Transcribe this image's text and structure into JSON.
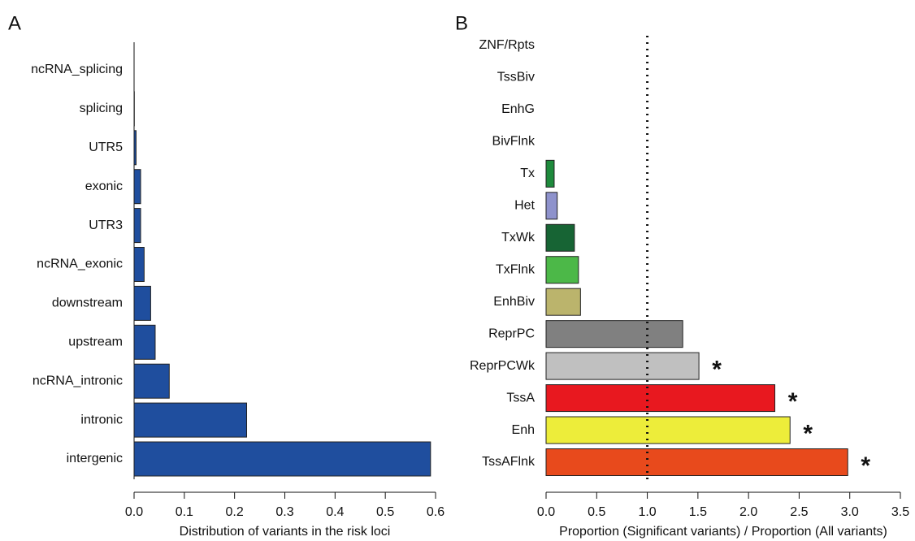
{
  "chart_data": [
    {
      "type": "barh",
      "label": "A",
      "xlabel": "Distribution of variants in the risk loci",
      "categories": [
        "ncRNA_splicing",
        "splicing",
        "UTR5",
        "exonic",
        "UTR3",
        "ncRNA_exonic",
        "downstream",
        "upstream",
        "ncRNA_intronic",
        "intronic",
        "intergenic"
      ],
      "values": [
        0,
        0.0005,
        0.004,
        0.013,
        0.013,
        0.02,
        0.033,
        0.042,
        0.07,
        0.224,
        0.59
      ],
      "color": "#1f4e9e",
      "xlim": [
        0,
        0.6
      ],
      "xticks": [
        {
          "value": 0,
          "label": "0.0"
        },
        0.1,
        0.2,
        0.3,
        0.4,
        0.5,
        0.6
      ]
    },
    {
      "type": "barh",
      "label": "B",
      "xlabel": "Proportion (Significant variants) / Proportion (All variants)",
      "categories": [
        "ZNF/Rpts",
        "TssBiv",
        "EnhG",
        "BivFlnk",
        "Tx",
        "Het",
        "TxWk",
        "TxFlnk",
        "EnhBiv",
        "ReprPC",
        "ReprPCWk",
        "TssA",
        "Enh",
        "TssAFlnk"
      ],
      "values": [
        0,
        0,
        0,
        0,
        0.08,
        0.11,
        0.28,
        0.32,
        0.34,
        1.35,
        1.51,
        2.26,
        2.41,
        2.98
      ],
      "colors": [
        "#ffffff",
        "#ffffff",
        "#ffffff",
        "#ffffff",
        "#1e8a3c",
        "#8e92cc",
        "#176434",
        "#4cb848",
        "#bbb46c",
        "#808080",
        "#c0c0c0",
        "#e8181f",
        "#eded3a",
        "#e84a1c"
      ],
      "markers": [
        null,
        null,
        null,
        null,
        null,
        null,
        null,
        null,
        null,
        null,
        "*",
        "*",
        "*",
        "*"
      ],
      "reference_line": {
        "value": 1.0,
        "label": "1.0"
      },
      "xlim": [
        0,
        3.5
      ],
      "xticks": [
        {
          "value": 0,
          "label": "0.0"
        },
        0.5,
        {
          "value": 1,
          "label": "1.0"
        },
        1.5,
        {
          "value": 2,
          "label": "2.0"
        },
        2.5,
        {
          "value": 3,
          "label": "3.0"
        },
        3.5
      ]
    }
  ]
}
